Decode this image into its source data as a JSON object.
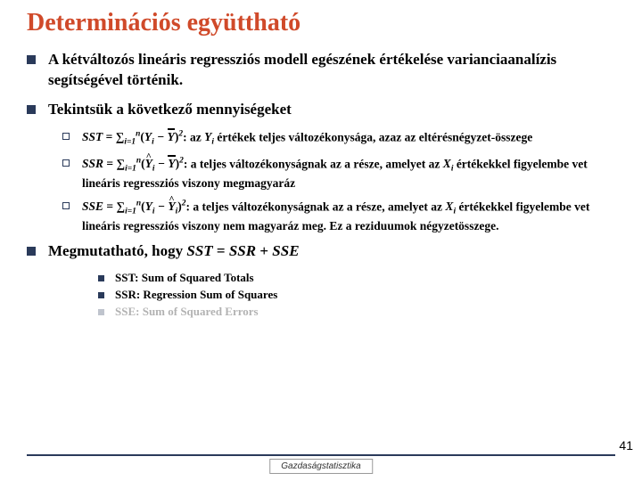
{
  "title": "Determinációs együttható",
  "bullets": {
    "b1": "A kétváltozós lineáris regressziós modell egészének értékelése varianciaanalízis segítségével történik.",
    "b2": "Tekintsük a következő mennyiségeket",
    "b4": "Megmutatható, hogy "
  },
  "sub": {
    "sst_desc": ": az Y<sub>i</sub> értékek teljes változékonysága, azaz az eltérésnégyzet-összege",
    "ssr_desc": ": a teljes változékonyságnak az a része, amelyet az X<sub>i</sub> értékekkel figyelembe vet lineáris regressziós viszony megmagyaráz",
    "sse_desc": ": a teljes változékonyságnak az a része, amelyet az X<sub>i</sub> értékekkel figyelembe vet lineáris regressziós viszony nem magyaráz meg. Ez a reziduumok négyzetösszege."
  },
  "defs": {
    "d1": "SST: Sum of Squared Totals",
    "d2": "SSR: Regression Sum of Squares",
    "d3": "SSE: Sum of Squared Errors"
  },
  "footer": "Gazdaságstatisztika",
  "page": "41"
}
